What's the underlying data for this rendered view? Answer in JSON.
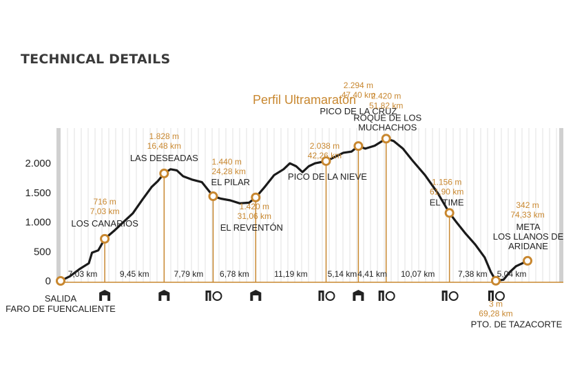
{
  "page": {
    "heading": "TECHNICAL DETAILS"
  },
  "colors": {
    "accent": "#c8872f",
    "profile": "#1a1a1a",
    "grid": "#e1e1e1",
    "edge": "#d0d0d0"
  },
  "chart_data": {
    "type": "area",
    "title": "Perfil  Ultramaratón",
    "xlabel": "",
    "ylabel": "",
    "xlim": [
      0,
      79.37
    ],
    "ylim": [
      0,
      2600
    ],
    "yticks": [
      {
        "value": 0,
        "label": "0"
      },
      {
        "value": 500,
        "label": "500"
      },
      {
        "value": 1000,
        "label": "1.000"
      },
      {
        "value": 1500,
        "label": "1.500"
      },
      {
        "value": 2000,
        "label": "2.000"
      }
    ],
    "grid": true,
    "profile": [
      [
        0,
        0
      ],
      [
        1.5,
        80
      ],
      [
        3,
        200
      ],
      [
        4.5,
        300
      ],
      [
        5,
        480
      ],
      [
        6,
        520
      ],
      [
        7.03,
        716
      ],
      [
        8.5,
        850
      ],
      [
        10,
        1000
      ],
      [
        11.5,
        1150
      ],
      [
        13,
        1380
      ],
      [
        14.5,
        1600
      ],
      [
        15.5,
        1700
      ],
      [
        16.48,
        1828
      ],
      [
        17.5,
        1900
      ],
      [
        18.5,
        1880
      ],
      [
        19.5,
        1780
      ],
      [
        21,
        1720
      ],
      [
        22.5,
        1680
      ],
      [
        24.28,
        1440
      ],
      [
        25.5,
        1400
      ],
      [
        27,
        1370
      ],
      [
        28.5,
        1320
      ],
      [
        30,
        1330
      ],
      [
        31.06,
        1420
      ],
      [
        32.5,
        1600
      ],
      [
        34,
        1800
      ],
      [
        35.5,
        1900
      ],
      [
        36.5,
        2000
      ],
      [
        37.5,
        1950
      ],
      [
        38.5,
        1850
      ],
      [
        39.5,
        1950
      ],
      [
        40.5,
        2000
      ],
      [
        42.26,
        2038
      ],
      [
        43.5,
        2100
      ],
      [
        45,
        2180
      ],
      [
        46.3,
        2200
      ],
      [
        47.4,
        2294
      ],
      [
        48.5,
        2250
      ],
      [
        50,
        2300
      ],
      [
        51.82,
        2420
      ],
      [
        53,
        2380
      ],
      [
        54.5,
        2250
      ],
      [
        56,
        2050
      ],
      [
        58,
        1800
      ],
      [
        60,
        1500
      ],
      [
        61.9,
        1156
      ],
      [
        63,
        1000
      ],
      [
        64.5,
        800
      ],
      [
        66,
        620
      ],
      [
        67.5,
        400
      ],
      [
        68.5,
        150
      ],
      [
        69.28,
        3
      ],
      [
        70.5,
        20
      ],
      [
        71.5,
        150
      ],
      [
        72.5,
        250
      ],
      [
        73.5,
        300
      ],
      [
        74.33,
        342
      ]
    ],
    "points": [
      {
        "name": "SALIDA",
        "label": [
          "SALIDA",
          "FARO DE FUENCALIENTE"
        ],
        "km": 0,
        "alt": 0,
        "alt_label": "",
        "km_label": "",
        "icon": "",
        "label_anchor": "middle"
      },
      {
        "name": "LOS CANARIOS",
        "label": [
          "LOS CANARIOS"
        ],
        "km": 7.03,
        "alt": 716,
        "alt_label": "716 m",
        "km_label": "7,03 km",
        "icon": "building-icon",
        "label_anchor": "middle"
      },
      {
        "name": "LAS DESEADAS",
        "label": [
          "LAS DESEADAS"
        ],
        "km": 16.48,
        "alt": 1828,
        "alt_label": "1.828 m",
        "km_label": "16,48 km",
        "icon": "building-icon",
        "label_anchor": "middle"
      },
      {
        "name": "EL PILAR",
        "label": [
          "EL PILAR"
        ],
        "km": 24.28,
        "alt": 1440,
        "alt_label": "1.440 m",
        "km_label": "24,28 km",
        "icon": "aid-station-icon",
        "label_anchor": "start"
      },
      {
        "name": "EL REVENTÓN",
        "label": [
          "EL REVENTÓN"
        ],
        "km": 31.06,
        "alt": 1420,
        "alt_label": "1.420 m",
        "km_label": "31,06 km",
        "icon": "building-icon",
        "label_anchor": "middle"
      },
      {
        "name": "PICO DE LA NIEVE",
        "label": [
          "PICO DE LA NIEVE"
        ],
        "km": 42.26,
        "alt": 2038,
        "alt_label": "2.038 m",
        "km_label": "42,26 km",
        "icon": "aid-station-icon",
        "label_anchor": "middle"
      },
      {
        "name": "PICO DE LA CRUZ",
        "label": [
          "PICO DE LA CRUZ"
        ],
        "km": 47.4,
        "alt": 2294,
        "alt_label": "2.294 m",
        "km_label": "47,40 km",
        "icon": "building-icon",
        "label_anchor": "middle"
      },
      {
        "name": "ROQUE DE LOS MUCHACHOS",
        "label": [
          "ROQUE DE LOS",
          "MUCHACHOS"
        ],
        "km": 51.82,
        "alt": 2420,
        "alt_label": "2.420 m",
        "km_label": "51,82 km",
        "icon": "aid-station-icon",
        "label_anchor": "middle"
      },
      {
        "name": "EL TIME",
        "label": [
          "EL TIME"
        ],
        "km": 61.9,
        "alt": 1156,
        "alt_label": "1.156 m",
        "km_label": "61,90 km",
        "icon": "aid-station-icon",
        "label_anchor": "middle"
      },
      {
        "name": "PTO. DE TAZACORTE",
        "label": [
          "PTO. DE TAZACORTE"
        ],
        "km": 69.28,
        "alt": 3,
        "alt_label": "3 m",
        "km_label": "69,28 km",
        "icon": "aid-station-icon",
        "label_anchor": "middle"
      },
      {
        "name": "META LOS LLANOS DE ARIDANE",
        "label": [
          "META",
          "LOS LLANOS DE",
          "ARIDANE"
        ],
        "km": 74.33,
        "alt": 342,
        "alt_label": "342 m",
        "km_label": "74,33 km",
        "icon": "",
        "label_anchor": "middle"
      }
    ],
    "segments": [
      {
        "from_km": 0,
        "to_km": 7.03,
        "label": "7,03 km"
      },
      {
        "from_km": 7.03,
        "to_km": 16.48,
        "label": "9,45 km"
      },
      {
        "from_km": 16.48,
        "to_km": 24.28,
        "label": "7,79 km"
      },
      {
        "from_km": 24.28,
        "to_km": 31.06,
        "label": "6,78 km"
      },
      {
        "from_km": 31.06,
        "to_km": 42.26,
        "label": "11,19 km"
      },
      {
        "from_km": 42.26,
        "to_km": 47.4,
        "label": "5,14 km"
      },
      {
        "from_km": 47.4,
        "to_km": 51.82,
        "label": "4,41 km"
      },
      {
        "from_km": 51.82,
        "to_km": 61.9,
        "label": "10,07 km"
      },
      {
        "from_km": 61.9,
        "to_km": 69.28,
        "label": "7,38 km"
      },
      {
        "from_km": 69.28,
        "to_km": 74.33,
        "label": "5,04 km"
      }
    ]
  }
}
